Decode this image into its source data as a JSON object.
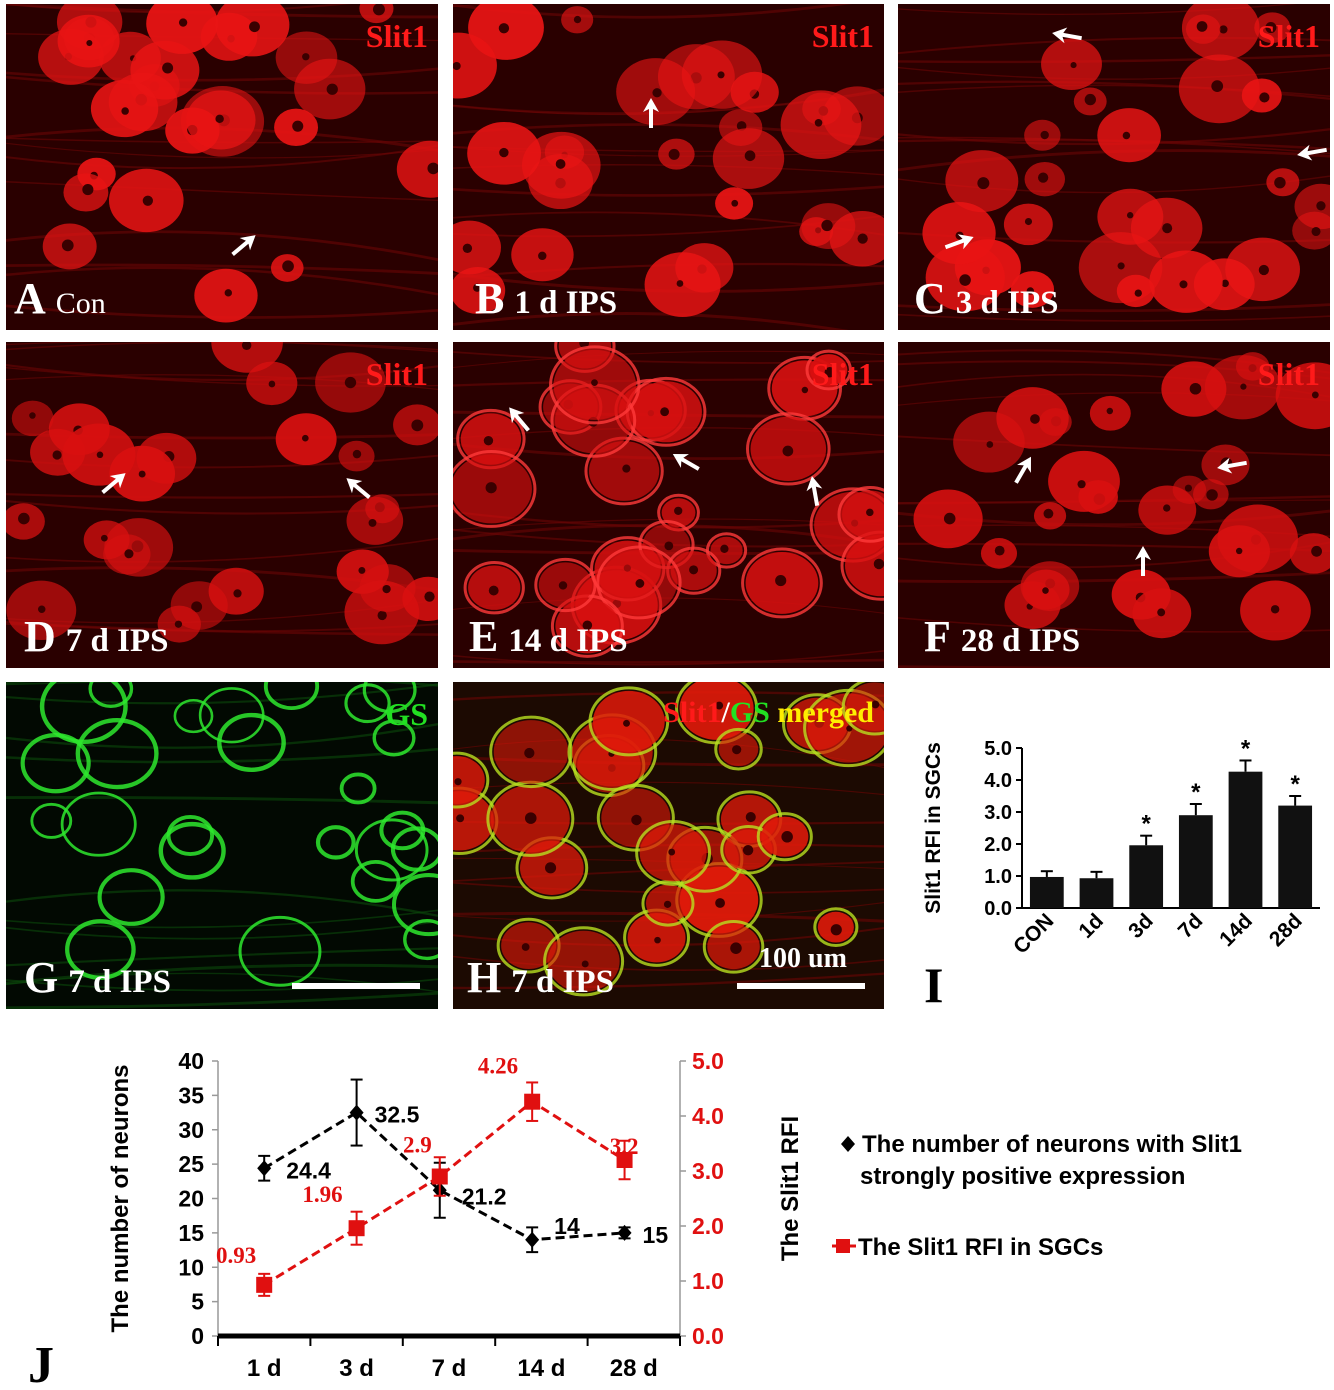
{
  "panels": [
    {
      "id": "A",
      "letter": "A",
      "condition": "Con",
      "stain": "Slit1",
      "arrows": 1
    },
    {
      "id": "B",
      "letter": "B",
      "condition": "1 d  IPS",
      "stain": "Slit1",
      "arrows": 1
    },
    {
      "id": "C",
      "letter": "C",
      "condition": "3 d  IPS",
      "stain": "Slit1",
      "arrows": 3
    },
    {
      "id": "D",
      "letter": "D",
      "condition": "7 d  IPS",
      "stain": "Slit1",
      "arrows": 2
    },
    {
      "id": "E",
      "letter": "E",
      "condition": "14 d  IPS",
      "stain": "Slit1",
      "arrows": 3
    },
    {
      "id": "F",
      "letter": "F",
      "condition": "28 d  IPS",
      "stain": "Slit1",
      "arrows": 3
    },
    {
      "id": "G",
      "letter": "G",
      "condition": "7 d  IPS",
      "stain": "GS"
    },
    {
      "id": "H",
      "letter": "H",
      "condition": "7 d  IPS",
      "stain_parts": [
        "Slit1",
        "/",
        "GS",
        " merged"
      ],
      "scale_text": "100 um"
    }
  ],
  "colors": {
    "slit1": "#ff1a1a",
    "gs": "#22e022",
    "merged": "#ffee00",
    "red_series": "#e01010",
    "black_series": "#000000"
  },
  "chart_data": [
    {
      "panel_letter": "I",
      "type": "bar",
      "categories": [
        "CON",
        "1d",
        "3d",
        "7d",
        "14d",
        "28d"
      ],
      "values": [
        0.97,
        0.93,
        1.96,
        2.9,
        4.26,
        3.2
      ],
      "errors": [
        0.18,
        0.2,
        0.3,
        0.35,
        0.35,
        0.3
      ],
      "significance": [
        "",
        "",
        "*",
        "*",
        "*",
        "*"
      ],
      "ylabel": "Slit1 RFI in SGCs",
      "ylim": [
        0,
        5
      ],
      "yticks": [
        "0.0",
        "1.0",
        "2.0",
        "3.0",
        "4.0",
        "5.0"
      ],
      "bar_color": "#111111"
    },
    {
      "panel_letter": "J",
      "type": "line",
      "categories": [
        "1 d",
        "3 d",
        "7 d",
        "14 d",
        "28 d"
      ],
      "ylabel_left": "The number of neurons",
      "ylabel_right": "The Slit1 RFI",
      "ylim_left": [
        0,
        40
      ],
      "ylim_right": [
        0,
        5
      ],
      "yticks_left": [
        "0",
        "5",
        "10",
        "15",
        "20",
        "25",
        "30",
        "35",
        "40"
      ],
      "yticks_right": [
        "0.0",
        "1.0",
        "2.0",
        "3.0",
        "4.0",
        "5.0"
      ],
      "series": [
        {
          "name": "The number of neurons with Slit1 strongly positive expression",
          "legend_line2": "strongly positive expression",
          "legend_line1": "The number of neurons with Slit1",
          "axis": "left",
          "x": [
            0.5,
            1.5,
            2.4,
            3.4,
            4.4
          ],
          "values": [
            24.4,
            32.5,
            21.2,
            14,
            15
          ],
          "labels": [
            "24.4",
            "32.5",
            "21.2",
            "14",
            "15"
          ],
          "errors": [
            1.8,
            4.8,
            4.0,
            1.8,
            0.8
          ],
          "color": "#000000",
          "marker": "diamond"
        },
        {
          "name": "The Slit1 RFI in SGCs",
          "axis": "right",
          "x": [
            0.5,
            1.5,
            2.4,
            3.4,
            4.4
          ],
          "values": [
            0.93,
            1.96,
            2.9,
            4.26,
            3.2
          ],
          "labels": [
            "0.93",
            "1.96",
            "2.9",
            "4.26",
            "3.2"
          ],
          "errors": [
            0.2,
            0.3,
            0.35,
            0.35,
            0.35
          ],
          "color": "#e01010",
          "marker": "square"
        }
      ]
    }
  ]
}
